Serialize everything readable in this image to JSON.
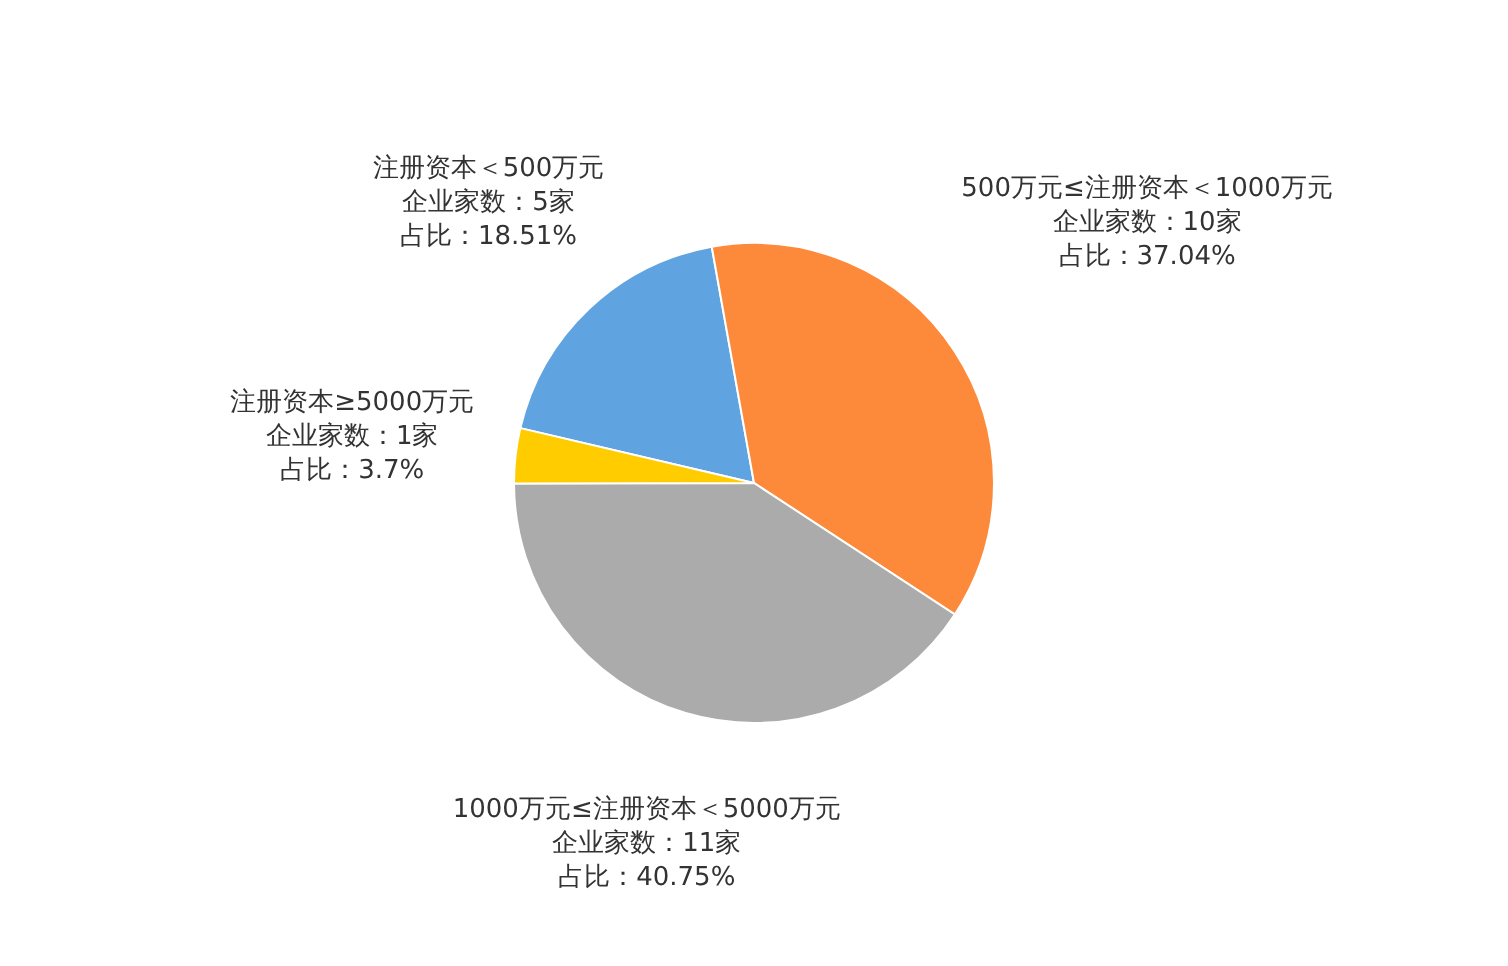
{
  "chart_data": {
    "type": "pie",
    "categories": [
      "注册资本＜500万元",
      "500万元≤注册资本＜1000万元",
      "1000万元≤注册资本＜5000万元",
      "注册资本≥5000万元"
    ],
    "values": [
      18.51,
      37.04,
      40.75,
      3.7
    ],
    "colors": [
      "#5fa3e0",
      "#fd8a3b",
      "#ababab",
      "#ffcc00"
    ],
    "value_labels": [
      "占比：18.51%",
      "占比：37.04%",
      "占比：40.75%",
      "占比：3.7%"
    ],
    "annotations": [
      "企业家数：5家",
      "企业家数：10家",
      "企业家数：11家",
      "企业家数：1家"
    ],
    "legend": false
  }
}
